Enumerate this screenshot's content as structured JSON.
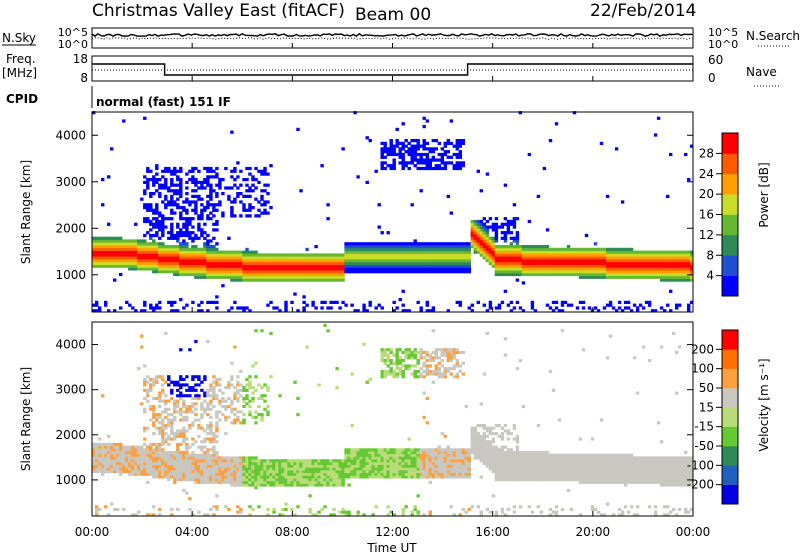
{
  "header": {
    "station": "Christmas Valley East (fitACF)",
    "beam": "Beam 00",
    "date": "22/Feb/2014"
  },
  "summary_panels": {
    "nsky_label": "N.Sky",
    "nsearch_label": "N.Search",
    "nsky_ticks": [
      "10^5",
      "10^0"
    ],
    "nsky_right_ticks": [
      "10^5",
      "10^0"
    ],
    "freq_label_line1": "Freq.",
    "freq_label_line2": "[MHz]",
    "freq_ticks": [
      "18",
      "8"
    ],
    "nave_label": "Nave",
    "nave_ticks": [
      "60",
      "0"
    ],
    "cpid_label": "CPID",
    "cpid_value": "normal (fast) 151 IF",
    "freq_steps": [
      {
        "from": 0,
        "to": 2.9,
        "level": "high"
      },
      {
        "from": 2.9,
        "to": 15.0,
        "level": "low"
      },
      {
        "from": 15.0,
        "to": 24,
        "level": "high"
      }
    ]
  },
  "chart_data": [
    {
      "type": "heatmap",
      "name": "power",
      "ylabel": "Slant Range [km]",
      "xlabel": "Time UT",
      "xlim": [
        0,
        24
      ],
      "ylim": [
        200,
        4500
      ],
      "yticks": [
        "1000",
        "2000",
        "3000",
        "4000"
      ],
      "xticks": [
        "00:00",
        "04:00",
        "08:00",
        "12:00",
        "16:00",
        "20:00",
        "00:00"
      ],
      "colorbar": {
        "label": "Power [dB]",
        "ticks": [
          "4",
          "8",
          "12",
          "16",
          "20",
          "24",
          "28"
        ],
        "colors": [
          "#0000ff",
          "#1f4fd0",
          "#2e8b57",
          "#66b832",
          "#c8dc28",
          "#ffa000",
          "#ff5a00",
          "#ff0000"
        ]
      }
    },
    {
      "type": "heatmap",
      "name": "velocity",
      "ylabel": "Slant Range [km]",
      "xlabel": "Time UT",
      "xlim": [
        0,
        24
      ],
      "ylim": [
        200,
        4500
      ],
      "yticks": [
        "1000",
        "2000",
        "3000",
        "4000"
      ],
      "xticks": [
        "00:00",
        "04:00",
        "08:00",
        "12:00",
        "16:00",
        "20:00",
        "00:00"
      ],
      "colorbar": {
        "label": "Velocity [m s⁻¹]",
        "ticks": [
          "200",
          "100",
          "50",
          "15",
          "-15",
          "-50",
          "-100",
          "-200"
        ],
        "colors": [
          "#0000e0",
          "#1f5fc0",
          "#2e8b57",
          "#66c832",
          "#b8dc78",
          "#c8c8c0",
          "#ffa040",
          "#ff7000",
          "#ff0000"
        ]
      }
    }
  ],
  "xaxis": {
    "label": "Time UT",
    "ticks": [
      "00:00",
      "04:00",
      "08:00",
      "12:00",
      "16:00",
      "20:00",
      "00:00"
    ]
  }
}
